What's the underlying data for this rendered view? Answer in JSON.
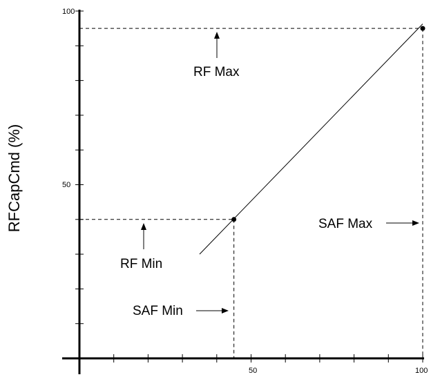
{
  "chart_data": {
    "type": "line",
    "title": "",
    "xlabel": "",
    "ylabel": "RFCapCmd (%)",
    "xlim": [
      0,
      100
    ],
    "ylim": [
      0,
      100
    ],
    "x_ticks": [
      "50",
      "100"
    ],
    "y_ticks": [
      "50",
      "100"
    ],
    "grid": false,
    "series": [
      {
        "x": [
          35,
          100
        ],
        "y": [
          30,
          96.3
        ]
      }
    ],
    "points": [
      {
        "x": 45,
        "y": 40
      },
      {
        "x": 100,
        "y": 95
      }
    ],
    "reference_lines": {
      "rf_max_y": 95,
      "rf_min_y": 40,
      "saf_min_x": 45,
      "saf_max_x": 100
    },
    "annotations": {
      "rf_max": "RF Max",
      "rf_min": "RF Min",
      "saf_min": "SAF Min",
      "saf_max": "SAF Max"
    }
  }
}
